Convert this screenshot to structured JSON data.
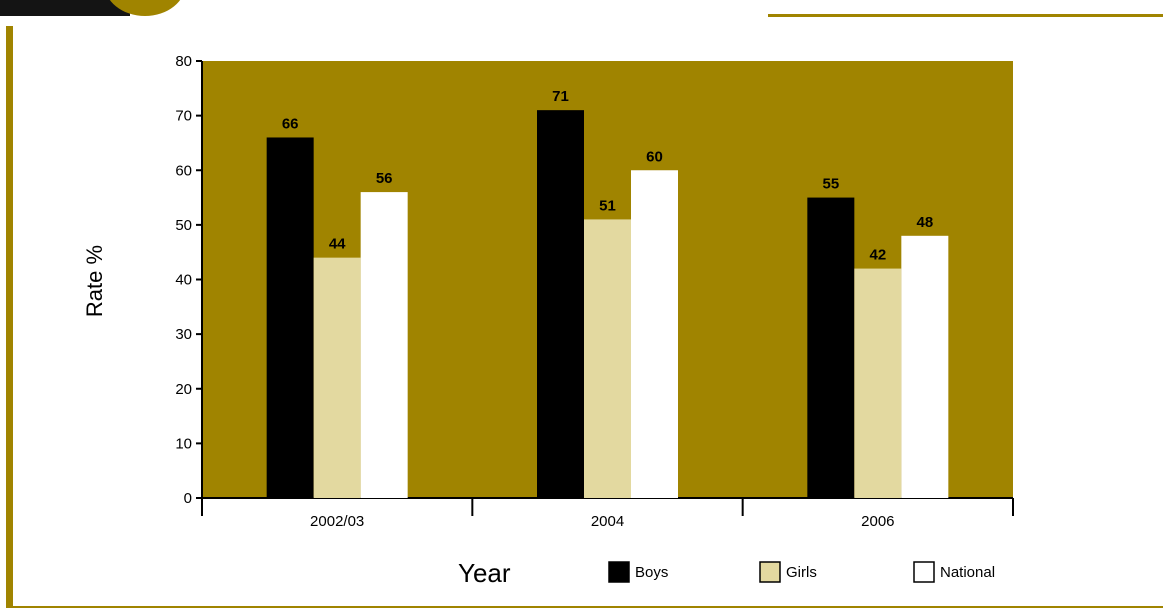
{
  "colors": {
    "plot_background": "#a08400",
    "accent": "#a08400",
    "dark": "#141414",
    "boys": "#000000",
    "girls": "#e3d9a0",
    "national": "#ffffff"
  },
  "chart_data": {
    "type": "bar",
    "categories": [
      "2002/03",
      "2004",
      "2006"
    ],
    "series": [
      {
        "name": "Boys",
        "values": [
          66,
          71,
          55
        ]
      },
      {
        "name": "Girls",
        "values": [
          44,
          51,
          42
        ]
      },
      {
        "name": "National",
        "values": [
          56,
          60,
          48
        ]
      }
    ],
    "xlabel": "Year",
    "ylabel": "Rate %",
    "ylim": [
      0,
      80
    ],
    "yticks": [
      "0",
      "10",
      "20",
      "30",
      "40",
      "50",
      "60",
      "70",
      "80"
    ],
    "data_labels": true,
    "grid": false,
    "legend_position": "bottom"
  }
}
